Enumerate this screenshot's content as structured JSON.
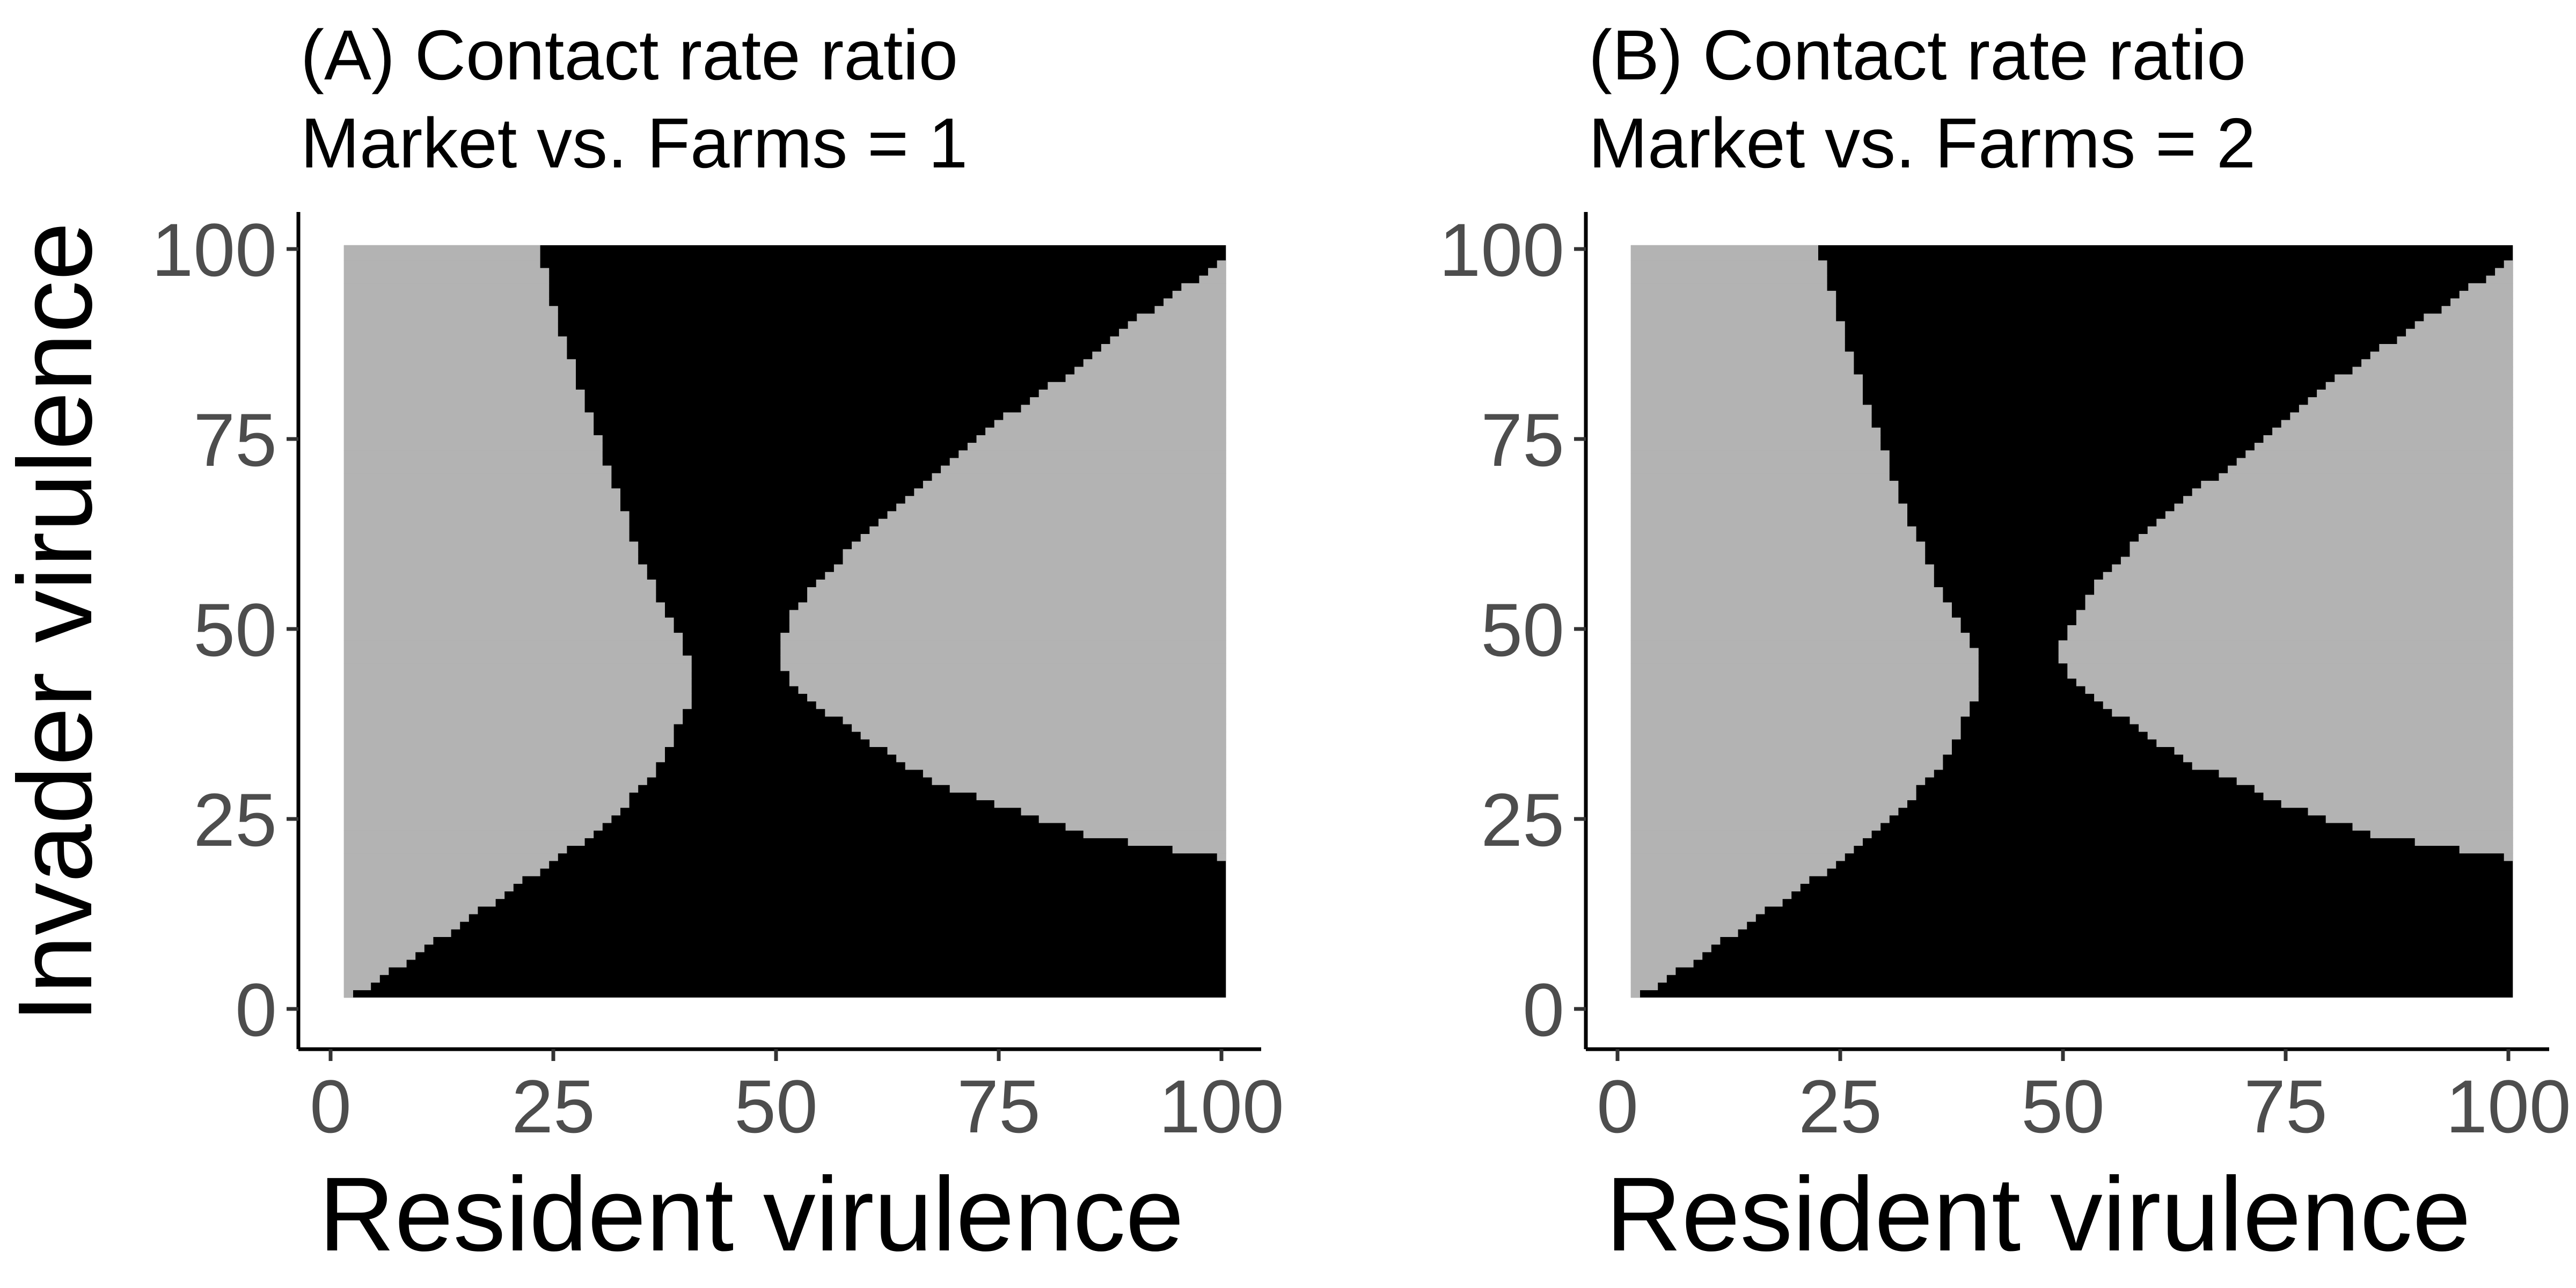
{
  "colors": {
    "background": "#ffffff",
    "region_light": "#b3b3b3",
    "region_dark": "#000000",
    "axis": "#000000",
    "tick_label": "#4d4d4d"
  },
  "chart_data": [
    {
      "type": "heatmap",
      "panel": "A",
      "title_lines": [
        "(A) Contact rate ratio",
        "Market vs. Farms = 1"
      ],
      "xlabel": "Resident virulence",
      "ylabel": "Invader virulence",
      "xlim": [
        2,
        100
      ],
      "ylim": [
        2,
        100
      ],
      "xticks": [
        0,
        25,
        50,
        75,
        100
      ],
      "yticks": [
        0,
        25,
        50,
        75,
        100
      ],
      "grid": false,
      "legend": "none",
      "cell_size": 1,
      "light_region_left_boundary": [
        [
          2,
          2
        ],
        [
          5,
          4
        ],
        [
          10,
          8
        ],
        [
          15,
          12
        ],
        [
          20,
          16
        ],
        [
          25,
          20
        ],
        [
          30,
          24
        ],
        [
          35,
          30
        ],
        [
          38,
          36
        ],
        [
          40,
          41
        ],
        [
          40,
          45
        ],
        [
          39,
          48
        ],
        [
          37,
          52
        ],
        [
          34,
          60
        ],
        [
          31,
          70
        ],
        [
          28,
          80
        ],
        [
          25,
          90
        ],
        [
          23,
          100
        ]
      ],
      "light_region_right_boundary": [
        [
          100,
          98
        ],
        [
          95,
          94
        ],
        [
          90,
          90
        ],
        [
          85,
          85
        ],
        [
          80,
          81
        ],
        [
          75,
          77
        ],
        [
          70,
          72
        ],
        [
          65,
          67
        ],
        [
          60,
          62
        ],
        [
          55,
          56
        ],
        [
          52,
          52
        ],
        [
          51,
          48
        ],
        [
          51,
          45
        ],
        [
          52,
          43
        ],
        [
          55,
          40
        ],
        [
          60,
          36
        ],
        [
          65,
          32
        ],
        [
          70,
          29
        ],
        [
          75,
          27
        ],
        [
          80,
          25
        ],
        [
          85,
          23
        ],
        [
          90,
          22
        ],
        [
          95,
          21
        ],
        [
          100,
          20
        ]
      ]
    },
    {
      "type": "heatmap",
      "panel": "B",
      "title_lines": [
        "(B) Contact rate ratio",
        "Market vs. Farms = 2"
      ],
      "xlabel": "Resident virulence",
      "ylabel": "",
      "xlim": [
        2,
        100
      ],
      "ylim": [
        2,
        100
      ],
      "xticks": [
        0,
        25,
        50,
        75,
        100
      ],
      "yticks": [
        0,
        25,
        50,
        75,
        100
      ],
      "grid": false,
      "legend": "none",
      "cell_size": 1,
      "light_region_left_boundary": [
        [
          2,
          2
        ],
        [
          5,
          4
        ],
        [
          10,
          8
        ],
        [
          15,
          12
        ],
        [
          20,
          16
        ],
        [
          25,
          20
        ],
        [
          30,
          25
        ],
        [
          35,
          31
        ],
        [
          38,
          37
        ],
        [
          40,
          42
        ],
        [
          40,
          46
        ],
        [
          38,
          50
        ],
        [
          35,
          57
        ],
        [
          32,
          65
        ],
        [
          28,
          78
        ],
        [
          25,
          88
        ],
        [
          22,
          100
        ]
      ],
      "light_region_right_boundary": [
        [
          100,
          98
        ],
        [
          95,
          94
        ],
        [
          90,
          90
        ],
        [
          85,
          86
        ],
        [
          80,
          82
        ],
        [
          75,
          77
        ],
        [
          70,
          72
        ],
        [
          65,
          68
        ],
        [
          60,
          63
        ],
        [
          55,
          57
        ],
        [
          52,
          52
        ],
        [
          50,
          47
        ],
        [
          51,
          44
        ],
        [
          53,
          42
        ],
        [
          55,
          40
        ],
        [
          60,
          36
        ],
        [
          65,
          32
        ],
        [
          70,
          30
        ],
        [
          75,
          27
        ],
        [
          80,
          25
        ],
        [
          85,
          23
        ],
        [
          90,
          22
        ],
        [
          95,
          21
        ],
        [
          100,
          20
        ]
      ]
    }
  ]
}
